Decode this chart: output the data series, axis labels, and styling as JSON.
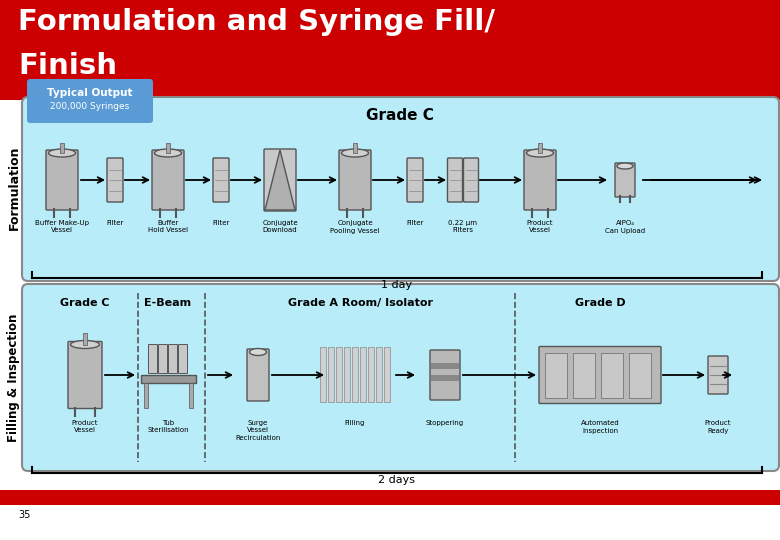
{
  "title_line1": "Formulation and Syringe Fill/",
  "title_line2": "Finish",
  "title_bg": "#cc0000",
  "title_color": "#ffffff",
  "typical_output_label": "Typical Output",
  "typical_output_sublabel": "200,000 Syringes",
  "typical_output_bg": "#5b9bd5",
  "grade_c_label": "Grade C",
  "grade_c_bg": "#b3e5f5",
  "formulation_label": "Formulation",
  "filling_label": "Filling & Inspection",
  "formulation_steps": [
    "Buffer Make-Up\nVessel",
    "Filter",
    "Buffer\nHold Vessel",
    "Filter",
    "Conjugate\nDownload",
    "Conjugate\nPooling Vessel",
    "Filter",
    "0.22 μm\nFilters",
    "Product\nVessel",
    "AlPO₄\nCan Upload"
  ],
  "filling_grades": [
    "Grade C",
    "E-Beam",
    "Grade A Room/ Isolator",
    "Grade D"
  ],
  "filling_steps": [
    "Product\nVessel",
    "Tub\nSterilisation",
    "Surge\nVessel\nRecirculation",
    "Filling",
    "Stoppering",
    "Automated\nInspection",
    "Product\nReady"
  ],
  "one_day_label": "1 day",
  "two_days_label": "2 days",
  "slide_number": "35",
  "bg_color": "#ffffff",
  "panel_bg": "#b8ecf8",
  "red_bar_color": "#cc0000"
}
